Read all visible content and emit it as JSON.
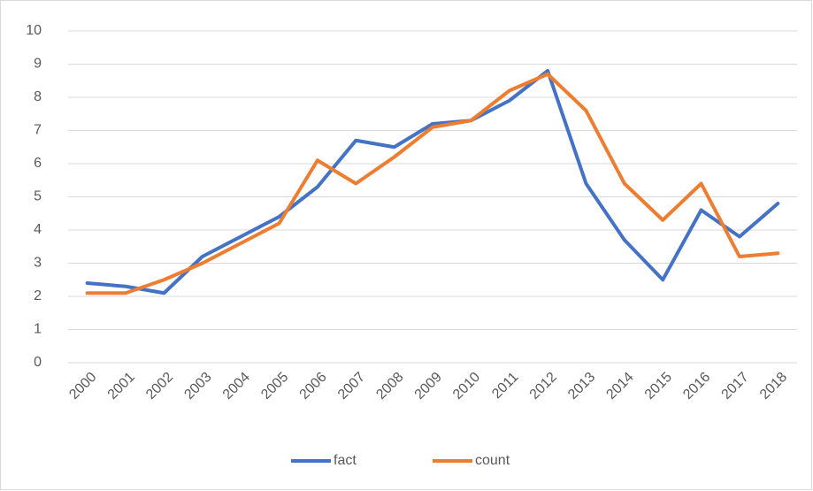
{
  "chart_data": {
    "type": "line",
    "categories": [
      "2000",
      "2001",
      "2002",
      "2003",
      "2004",
      "2005",
      "2006",
      "2007",
      "2008",
      "2009",
      "2010",
      "2011",
      "2012",
      "2013",
      "2014",
      "2015",
      "2016",
      "2017",
      "2018"
    ],
    "series": [
      {
        "name": "fact",
        "color": "#4472c4",
        "values": [
          2.4,
          2.3,
          2.1,
          3.2,
          3.8,
          4.4,
          5.3,
          6.7,
          6.5,
          7.2,
          7.3,
          7.9,
          8.8,
          5.4,
          3.7,
          2.5,
          4.6,
          3.8,
          4.8
        ]
      },
      {
        "name": "count",
        "color": "#ed7d31",
        "values": [
          2.1,
          2.1,
          2.5,
          3.0,
          3.6,
          4.2,
          6.1,
          5.4,
          6.2,
          7.1,
          7.3,
          8.2,
          8.7,
          7.6,
          5.4,
          4.3,
          5.4,
          3.2,
          3.3
        ]
      }
    ],
    "ylim": [
      0,
      10
    ],
    "yticks": [
      0,
      1,
      2,
      3,
      4,
      5,
      6,
      7,
      8,
      9,
      10
    ],
    "grid": true,
    "legend": "bottom"
  }
}
